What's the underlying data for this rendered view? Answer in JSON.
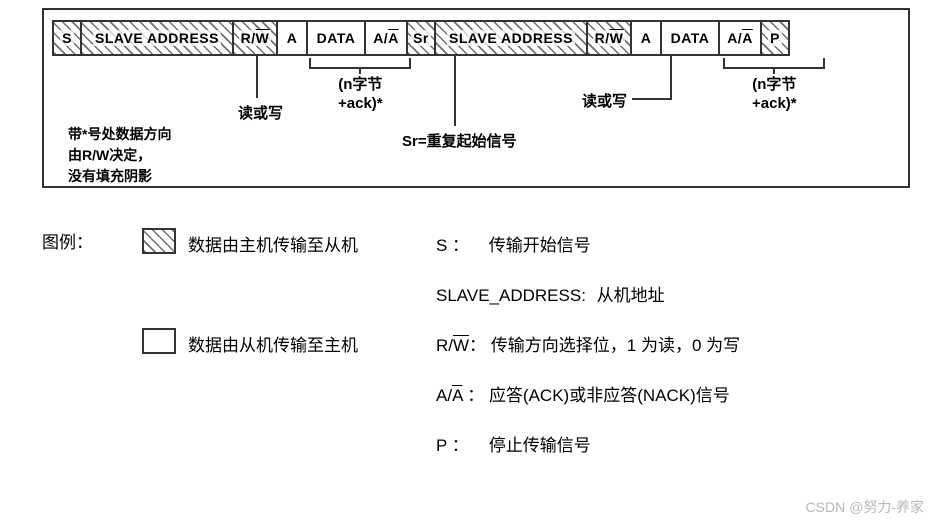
{
  "protocol": {
    "cells": [
      {
        "label": "S",
        "hatched": true,
        "wclass": "w-s"
      },
      {
        "label": "SLAVE ADDRESS",
        "hatched": true,
        "wclass": "w-addr"
      },
      {
        "label": "R/W",
        "hatched": true,
        "wclass": "w-rw",
        "overline_part": "W"
      },
      {
        "label": "A",
        "hatched": false,
        "wclass": "w-a"
      },
      {
        "label": "DATA",
        "hatched": false,
        "wclass": "w-data"
      },
      {
        "label": "A/A",
        "hatched": false,
        "wclass": "w-aa",
        "overline_suffix": true
      },
      {
        "label": "Sr",
        "hatched": true,
        "wclass": "w-sr"
      },
      {
        "label": "SLAVE ADDRESS",
        "hatched": true,
        "wclass": "w-addr"
      },
      {
        "label": "R/W",
        "hatched": true,
        "wclass": "w-rw",
        "overline_part": "W"
      },
      {
        "label": "A",
        "hatched": false,
        "wclass": "w-a"
      },
      {
        "label": "DATA",
        "hatched": false,
        "wclass": "w-data"
      },
      {
        "label": "A/A",
        "hatched": false,
        "wclass": "w-aa",
        "overline_suffix": true
      },
      {
        "label": "P",
        "hatched": true,
        "wclass": "w-s"
      }
    ],
    "ann_rw1": "读或写",
    "ann_nbyte": "(n字节\n+ack)*",
    "ann_sr": "Sr=重复起始信号",
    "ann_rw2": "读或写",
    "note_asterisk": "带*号处数据方向\n由R/W决定，\n没有填充阴影"
  },
  "legend": {
    "title": "图例：",
    "master_to_slave": "数据由主机传输至从机",
    "slave_to_master": "数据由从机传输至主机",
    "items": [
      {
        "sym": "S ：",
        "desc": "传输开始信号"
      },
      {
        "sym": "SLAVE_ADDRESS:",
        "desc": "从机地址"
      },
      {
        "sym": "R/W：",
        "desc": "传输方向选择位，1 为读，0 为写",
        "overline": "W"
      },
      {
        "sym": "A/A ：",
        "desc": "应答(ACK)或非应答(NACK)信号",
        "overline_suffix": true
      },
      {
        "sym": "P ：",
        "desc": "停止传输信号"
      }
    ]
  },
  "watermark": "CSDN @努力-养家",
  "colors": {
    "border": "#333333",
    "text": "#000000",
    "hatch": "#707070",
    "bg": "#ffffff",
    "wm": "#b8b8b8"
  }
}
